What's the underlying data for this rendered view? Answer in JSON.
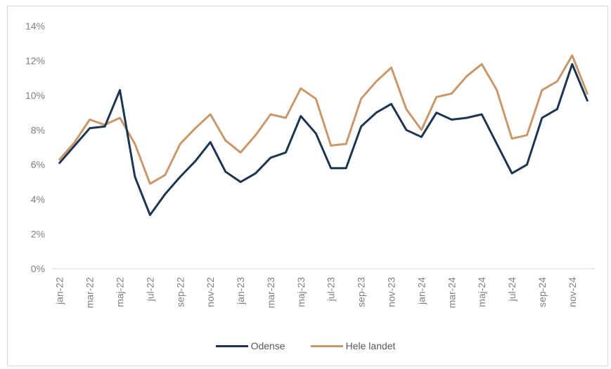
{
  "chart_data": {
    "type": "line",
    "title": "",
    "xlabel": "",
    "ylabel": "",
    "ylim": [
      0,
      14
    ],
    "y_ticks": [
      "0%",
      "2%",
      "4%",
      "6%",
      "8%",
      "10%",
      "12%",
      "14%"
    ],
    "y_tick_values": [
      0,
      2,
      4,
      6,
      8,
      10,
      12,
      14
    ],
    "grid": false,
    "legend_position": "bottom",
    "x": [
      "jan-22",
      "feb-22",
      "mar-22",
      "apr-22",
      "maj-22",
      "jun-22",
      "jul-22",
      "aug-22",
      "sep-22",
      "okt-22",
      "nov-22",
      "dec-22",
      "jan-23",
      "feb-23",
      "mar-23",
      "apr-23",
      "maj-23",
      "jun-23",
      "jul-23",
      "aug-23",
      "sep-23",
      "okt-23",
      "nov-23",
      "dec-23",
      "jan-24",
      "feb-24",
      "mar-24",
      "apr-24",
      "maj-24",
      "jun-24",
      "jul-24",
      "aug-24",
      "sep-24",
      "okt-24",
      "nov-24",
      "dec-24"
    ],
    "x_tick_labels": [
      "jan-22",
      "mar-22",
      "maj-22",
      "jul-22",
      "sep-22",
      "nov-22",
      "jan-23",
      "mar-23",
      "maj-23",
      "jul-23",
      "sep-23",
      "nov-23",
      "jan-24",
      "mar-24",
      "maj-24",
      "jul-24",
      "sep-24",
      "nov-24"
    ],
    "series": [
      {
        "name": "Odense",
        "color": "#1c3550",
        "values": [
          6.1,
          7.1,
          8.1,
          8.2,
          10.3,
          5.3,
          3.1,
          4.3,
          5.3,
          6.2,
          7.3,
          5.6,
          5.0,
          5.5,
          6.4,
          6.7,
          8.8,
          7.8,
          5.8,
          5.8,
          8.2,
          9.0,
          9.5,
          8.0,
          7.6,
          9.0,
          8.6,
          8.7,
          8.9,
          7.2,
          5.5,
          6.0,
          8.7,
          9.2,
          11.8,
          9.7
        ]
      },
      {
        "name": "Hele landet",
        "color": "#c8976a",
        "values": [
          6.3,
          7.3,
          8.6,
          8.3,
          8.7,
          7.2,
          4.9,
          5.4,
          7.2,
          8.1,
          8.9,
          7.4,
          6.7,
          7.7,
          8.9,
          8.7,
          10.4,
          9.8,
          7.1,
          7.2,
          9.8,
          10.8,
          11.6,
          9.2,
          8.0,
          9.9,
          10.1,
          11.1,
          11.8,
          10.3,
          7.5,
          7.7,
          10.3,
          10.8,
          12.3,
          10.1
        ]
      }
    ]
  }
}
